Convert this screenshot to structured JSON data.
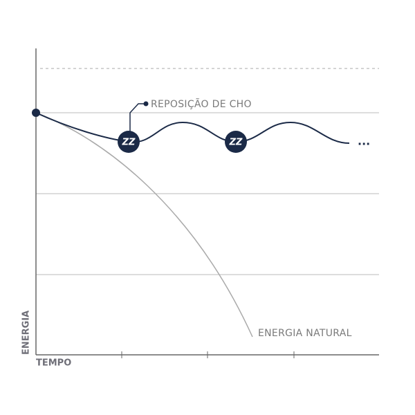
{
  "labels": {
    "y_axis": "ENERGIA",
    "x_axis": "TEMPO",
    "refuel": "REPOSIÇÃO DE CHO",
    "natural": "ENERGIA NATURAL",
    "ellipsis": "..."
  },
  "markers": [
    "ZZ",
    "ZZ"
  ]
}
